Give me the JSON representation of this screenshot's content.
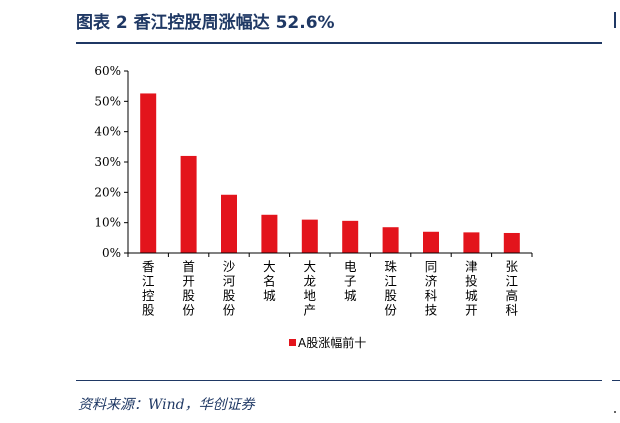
{
  "figure": {
    "title": "图表 2   香江控股周涨幅达 52.6%",
    "source": "资料来源：Wind，华创证券"
  },
  "colors": {
    "bar": "#e3141c",
    "title": "#1f3864",
    "axis": "#000000"
  },
  "chart_data": {
    "type": "bar",
    "categories": [
      "香江控股",
      "首开股份",
      "沙河股份",
      "大名城",
      "大龙地产",
      "电子城",
      "珠江股份",
      "同济科技",
      "津投城开",
      "张江高科"
    ],
    "series": [
      {
        "name": "A股涨幅前十",
        "values": [
          52.6,
          32.0,
          19.2,
          12.6,
          11.0,
          10.6,
          8.5,
          7.0,
          6.8,
          6.6
        ]
      }
    ],
    "yticks": [
      "0%",
      "10%",
      "20%",
      "30%",
      "40%",
      "50%",
      "60%"
    ],
    "ylim": [
      0,
      60
    ],
    "grid": false,
    "legend_position": "bottom-center"
  }
}
